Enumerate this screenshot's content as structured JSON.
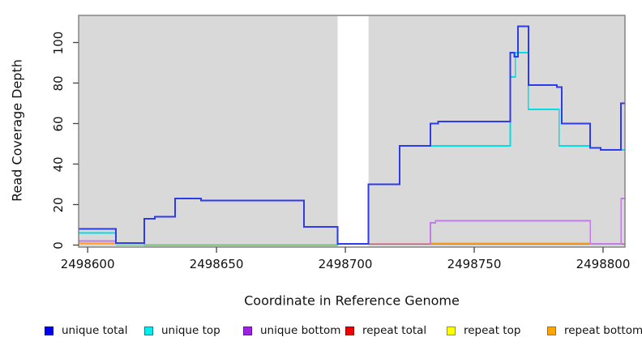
{
  "chart_data": {
    "type": "line",
    "subtype": "step-coverage-plot",
    "title": "",
    "xlabel": "Coordinate in Reference Genome",
    "ylabel": "Read Coverage Depth",
    "xlim": [
      2498596.5,
      2498808.5
    ],
    "ylim": [
      -1,
      113.4
    ],
    "x_ticks": [
      2498600,
      2498650,
      2498700,
      2498750,
      2498800
    ],
    "y_ticks": [
      0,
      20,
      40,
      60,
      80,
      100
    ],
    "plot_bg": "#D9D9D9",
    "border_color": "#777777",
    "tick_color": "#444444",
    "gap_region": {
      "start": 2498697,
      "end": 2498709,
      "color": "#FFFFFF"
    },
    "series": [
      {
        "name": "unique top",
        "color": "#00DEE8",
        "width": 1.6,
        "segments": [
          [
            [
              2498596.5,
              6
            ],
            [
              2498611,
              1
            ],
            [
              2498622,
              0
            ],
            [
              2498697,
              0.5
            ],
            [
              2498709,
              30
            ],
            [
              2498721,
              49
            ],
            [
              2498764,
              83
            ],
            [
              2498766,
              95
            ],
            [
              2498771,
              67
            ],
            [
              2498783,
              49
            ],
            [
              2498795,
              48
            ],
            [
              2498799,
              47
            ],
            [
              2498808.5,
              47
            ]
          ]
        ]
      },
      {
        "name": "zero baseline",
        "color": "#7CBE7C",
        "width": 1.4,
        "segments": [
          [
            [
              2498611,
              0
            ],
            [
              2498697,
              0
            ]
          ]
        ]
      },
      {
        "name": "repeat top",
        "color": "#FFFF00",
        "width": 1.4,
        "segments": []
      },
      {
        "name": "repeat total",
        "color": "#E34F63",
        "width": 1.6,
        "segments": [
          [
            [
              2498709,
              0.5
            ],
            [
              2498808.5,
              0.5
            ]
          ]
        ]
      },
      {
        "name": "repeat bottom",
        "color": "#FF9D1E",
        "width": 1.8,
        "segments": [
          [
            [
              2498596.5,
              0.8
            ],
            [
              2498611,
              0.8
            ]
          ],
          [
            [
              2498733,
              0.8
            ],
            [
              2498795,
              0.8
            ]
          ]
        ]
      },
      {
        "name": "unique bottom",
        "color": "#C47BEA",
        "width": 1.6,
        "segments": [
          [
            [
              2498596.5,
              2
            ],
            [
              2498611,
              1
            ],
            [
              2498622,
              13
            ],
            [
              2498626,
              14
            ],
            [
              2498634,
              23
            ],
            [
              2498644,
              22
            ],
            [
              2498684,
              9
            ],
            [
              2498697,
              0.6
            ],
            [
              2498709,
              0.6
            ]
          ],
          [
            [
              2498733,
              0.6
            ],
            [
              2498733,
              11
            ],
            [
              2498735,
              12
            ],
            [
              2498795,
              0.6
            ],
            [
              2498807,
              0.6
            ],
            [
              2498807,
              23
            ],
            [
              2498808.5,
              23
            ]
          ]
        ]
      },
      {
        "name": "unique total",
        "color": "#2E3BEA",
        "width": 2,
        "segments": [
          [
            [
              2498596.5,
              8
            ],
            [
              2498611,
              1
            ],
            [
              2498622,
              13
            ],
            [
              2498626,
              14
            ],
            [
              2498634,
              23
            ],
            [
              2498644,
              22
            ],
            [
              2498684,
              9
            ],
            [
              2498697,
              0.6
            ],
            [
              2498709,
              30
            ],
            [
              2498721,
              49
            ],
            [
              2498733,
              60
            ],
            [
              2498736,
              61
            ],
            [
              2498764,
              95
            ],
            [
              2498765.5,
              93
            ],
            [
              2498767,
              108
            ],
            [
              2498771,
              79
            ],
            [
              2498782,
              78
            ],
            [
              2498784,
              60
            ],
            [
              2498795,
              48
            ],
            [
              2498799,
              47
            ],
            [
              2498807,
              70
            ],
            [
              2498808.5,
              70
            ]
          ]
        ]
      }
    ],
    "legend": [
      {
        "label": "unique total",
        "fill": "#0000EE",
        "border": "#000090"
      },
      {
        "label": "unique top",
        "fill": "#00EEEE",
        "border": "#008B8B"
      },
      {
        "label": "unique bottom",
        "fill": "#A020E0",
        "border": "#6A0DAD"
      },
      {
        "label": "repeat total",
        "fill": "#EE0000",
        "border": "#990000"
      },
      {
        "label": "repeat top",
        "fill": "#FFFF00",
        "border": "#9A9A00"
      },
      {
        "label": "repeat bottom",
        "fill": "#FFA500",
        "border": "#B36B00"
      }
    ]
  }
}
